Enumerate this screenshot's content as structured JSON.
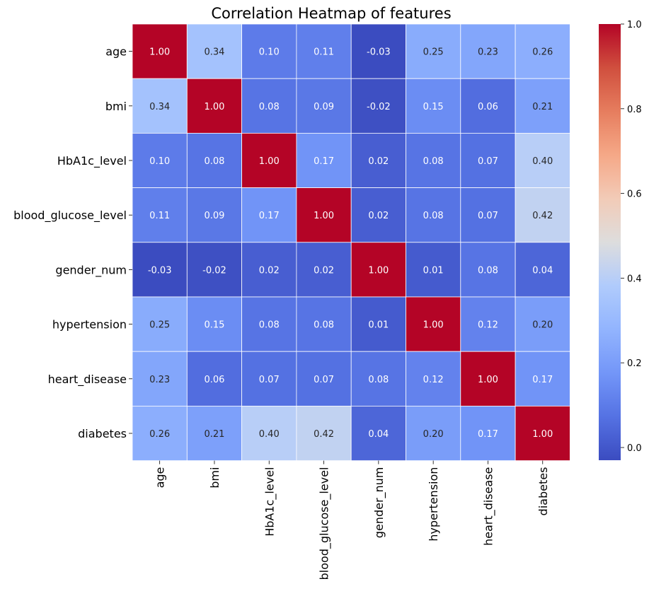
{
  "chart_data": {
    "type": "heatmap",
    "title": "Correlation Heatmap of features",
    "rows": [
      "age",
      "bmi",
      "HbA1c_level",
      "blood_glucose_level",
      "gender_num",
      "hypertension",
      "heart_disease",
      "diabetes"
    ],
    "columns": [
      "age",
      "bmi",
      "HbA1c_level",
      "blood_glucose_level",
      "gender_num",
      "hypertension",
      "heart_disease",
      "diabetes"
    ],
    "values": [
      [
        1.0,
        0.34,
        0.1,
        0.11,
        -0.03,
        0.25,
        0.23,
        0.26
      ],
      [
        0.34,
        1.0,
        0.08,
        0.09,
        -0.02,
        0.15,
        0.06,
        0.21
      ],
      [
        0.1,
        0.08,
        1.0,
        0.17,
        0.02,
        0.08,
        0.07,
        0.4
      ],
      [
        0.11,
        0.09,
        0.17,
        1.0,
        0.02,
        0.08,
        0.07,
        0.42
      ],
      [
        -0.03,
        -0.02,
        0.02,
        0.02,
        1.0,
        0.01,
        0.08,
        0.04
      ],
      [
        0.25,
        0.15,
        0.08,
        0.08,
        0.01,
        1.0,
        0.12,
        0.2
      ],
      [
        0.23,
        0.06,
        0.07,
        0.07,
        0.08,
        0.12,
        1.0,
        0.17
      ],
      [
        0.26,
        0.21,
        0.4,
        0.42,
        0.04,
        0.2,
        0.17,
        1.0
      ]
    ],
    "value_format": "0.00",
    "colormap": "coolwarm",
    "colorbar": {
      "min": -0.03,
      "max": 1.0,
      "ticks": [
        0.0,
        0.2,
        0.4,
        0.6,
        0.8,
        1.0
      ]
    },
    "grid_lines": true,
    "grid_color": "#ffffff",
    "xlabel": "",
    "ylabel": ""
  }
}
